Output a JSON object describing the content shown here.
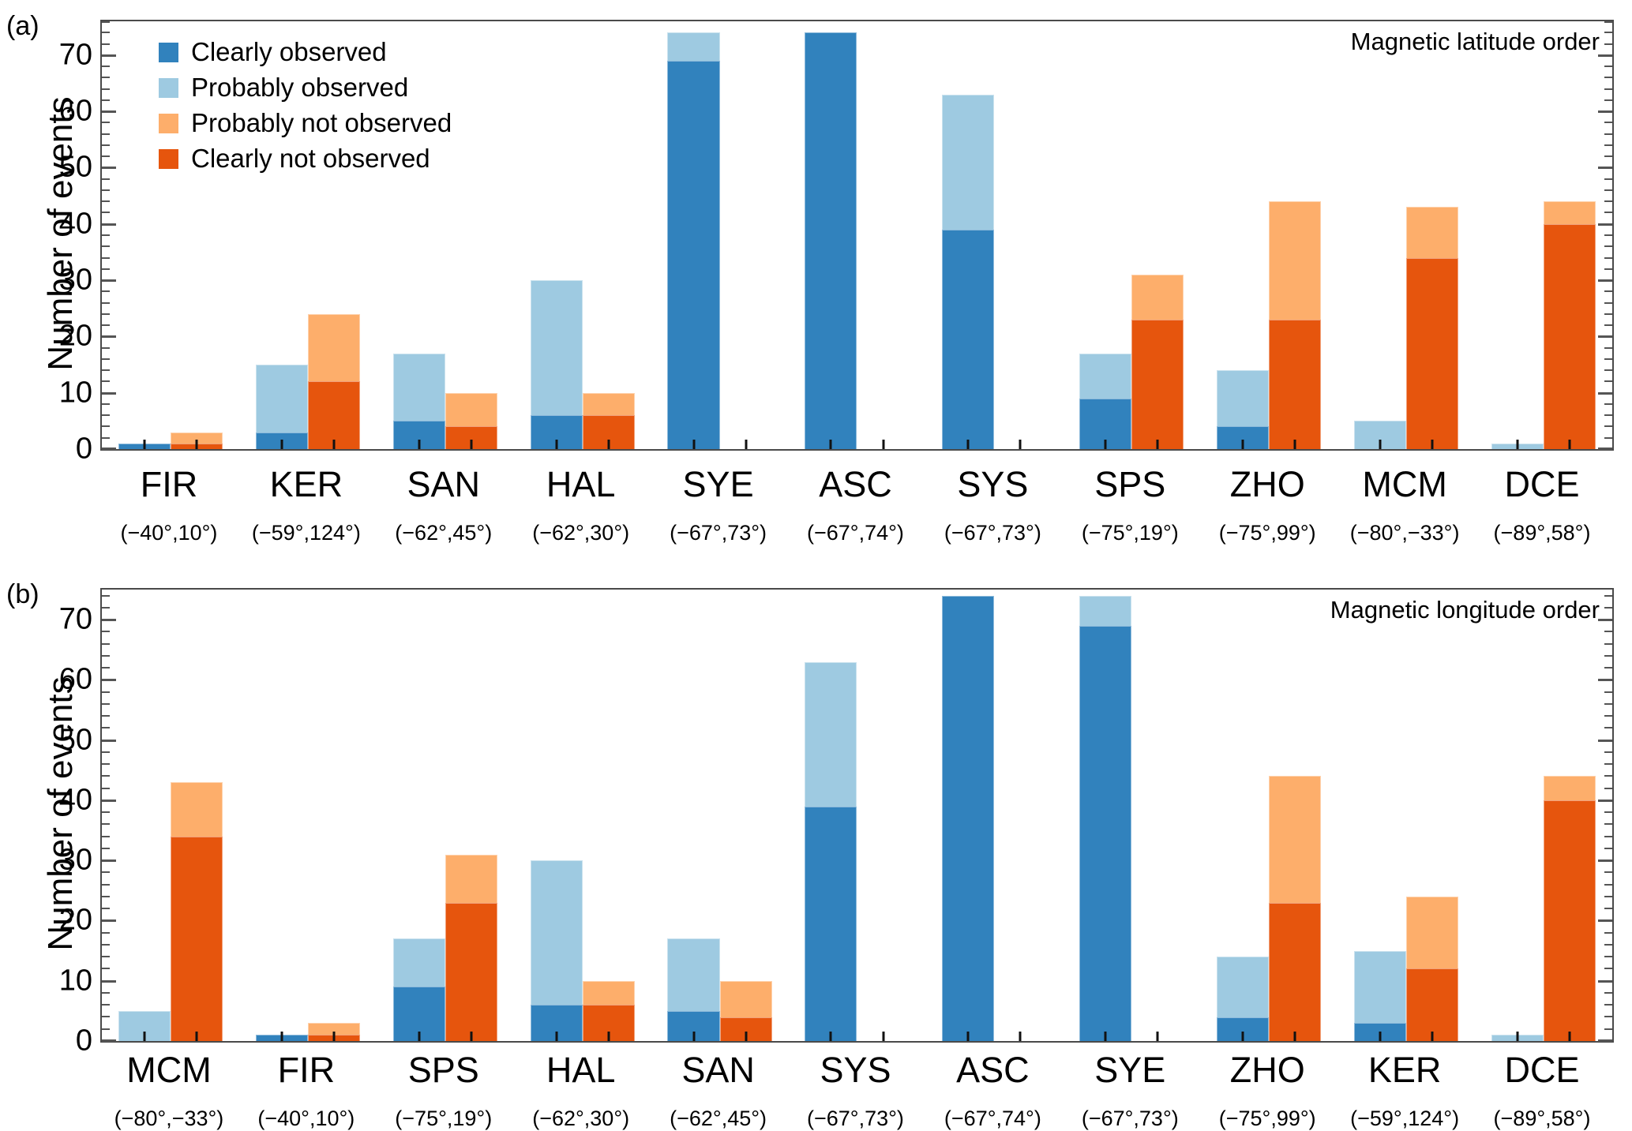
{
  "figure": {
    "panel_a_letter": "(a)",
    "panel_b_letter": "(b)",
    "background": "#ffffff",
    "frame_color": "#4a4a4a"
  },
  "legend": {
    "position": "top-left-inside-panel-a",
    "items": [
      {
        "label": "Clearly observed",
        "color": "#3182bd"
      },
      {
        "label": "Probably observed",
        "color": "#9ecae1"
      },
      {
        "label": "Probably not observed",
        "color": "#fdae6b"
      },
      {
        "label": "Clearly not observed",
        "color": "#e6550d"
      }
    ]
  },
  "colors": {
    "clearly_observed": "#3182bd",
    "probably_observed": "#9ecae1",
    "probably_not_observed": "#fdae6b",
    "clearly_not_observed": "#e6550d",
    "axis": "#4a4a4a",
    "tick": "#555555",
    "text": "#000000"
  },
  "chart_data": [
    {
      "type": "bar",
      "stacked": true,
      "panel_letter": "(a)",
      "title": "Magnetic latitude order",
      "ylabel": "Number of events",
      "ylim": [
        0,
        76
      ],
      "y_tick_step": 10,
      "y_minor_step": 2,
      "y_ticks": [
        0,
        10,
        20,
        30,
        40,
        50,
        60,
        70
      ],
      "grid": false,
      "legend_position": "upper left",
      "categories": [
        "FIR",
        "KER",
        "SAN",
        "HAL",
        "SYE",
        "ASC",
        "SYS",
        "SPS",
        "ZHO",
        "MCM",
        "DCE"
      ],
      "category_coords": [
        "(−40°,10°)",
        "(−59°,124°)",
        "(−62°,45°)",
        "(−62°,30°)",
        "(−67°,73°)",
        "(−67°,74°)",
        "(−67°,73°)",
        "(−75°,19°)",
        "(−75°,99°)",
        "(−80°,−33°)",
        "(−89°,58°)"
      ],
      "bar_stacks": [
        {
          "bar": "observed",
          "series_keys": [
            "clearly_observed",
            "probably_observed"
          ]
        },
        {
          "bar": "not_observed",
          "series_keys": [
            "clearly_not_observed",
            "probably_not_observed"
          ]
        }
      ],
      "series": [
        {
          "name": "Clearly observed",
          "key": "clearly_observed",
          "color": "#3182bd",
          "values": [
            1,
            3,
            5,
            6,
            69,
            74,
            39,
            9,
            4,
            0,
            0
          ]
        },
        {
          "name": "Probably observed",
          "key": "probably_observed",
          "color": "#9ecae1",
          "values": [
            0,
            12,
            12,
            24,
            5,
            0,
            24,
            8,
            10,
            5,
            1
          ]
        },
        {
          "name": "Probably not observed",
          "key": "probably_not_observed",
          "color": "#fdae6b",
          "values": [
            2,
            12,
            6,
            4,
            0,
            0,
            0,
            8,
            21,
            9,
            4
          ]
        },
        {
          "name": "Clearly not observed",
          "key": "clearly_not_observed",
          "color": "#e6550d",
          "values": [
            1,
            12,
            4,
            6,
            0,
            0,
            0,
            23,
            23,
            34,
            40
          ]
        }
      ]
    },
    {
      "type": "bar",
      "stacked": true,
      "panel_letter": "(b)",
      "title": "Magnetic longitude order",
      "ylabel": "Number of events",
      "ylim": [
        0,
        75
      ],
      "y_tick_step": 10,
      "y_minor_step": 2,
      "y_ticks": [
        0,
        10,
        20,
        30,
        40,
        50,
        60,
        70
      ],
      "grid": false,
      "categories": [
        "MCM",
        "FIR",
        "SPS",
        "HAL",
        "SAN",
        "SYS",
        "ASC",
        "SYE",
        "ZHO",
        "KER",
        "DCE"
      ],
      "category_coords": [
        "(−80°,−33°)",
        "(−40°,10°)",
        "(−75°,19°)",
        "(−62°,30°)",
        "(−62°,45°)",
        "(−67°,73°)",
        "(−67°,74°)",
        "(−67°,73°)",
        "(−75°,99°)",
        "(−59°,124°)",
        "(−89°,58°)"
      ],
      "bar_stacks": [
        {
          "bar": "observed",
          "series_keys": [
            "clearly_observed",
            "probably_observed"
          ]
        },
        {
          "bar": "not_observed",
          "series_keys": [
            "clearly_not_observed",
            "probably_not_observed"
          ]
        }
      ],
      "series": [
        {
          "name": "Clearly observed",
          "key": "clearly_observed",
          "color": "#3182bd",
          "values": [
            0,
            1,
            9,
            6,
            5,
            39,
            74,
            69,
            4,
            3,
            0
          ]
        },
        {
          "name": "Probably observed",
          "key": "probably_observed",
          "color": "#9ecae1",
          "values": [
            5,
            0,
            8,
            24,
            12,
            24,
            0,
            5,
            10,
            12,
            1
          ]
        },
        {
          "name": "Probably not observed",
          "key": "probably_not_observed",
          "color": "#fdae6b",
          "values": [
            9,
            2,
            8,
            4,
            6,
            0,
            0,
            0,
            21,
            12,
            4
          ]
        },
        {
          "name": "Clearly not observed",
          "key": "clearly_not_observed",
          "color": "#e6550d",
          "values": [
            34,
            1,
            23,
            6,
            4,
            0,
            0,
            0,
            23,
            12,
            40
          ]
        }
      ]
    }
  ]
}
